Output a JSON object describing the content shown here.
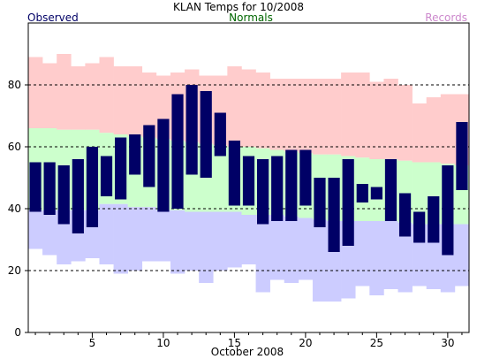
{
  "chart_data": {
    "type": "bar",
    "title": "KLAN Temps for 10/2008",
    "xlabel": "October 2008",
    "ylabel": "",
    "xlim": [
      0.5,
      31.5
    ],
    "ylim": [
      0,
      100
    ],
    "yticks": [
      0,
      20,
      40,
      60,
      80
    ],
    "xticks": [
      5,
      10,
      15,
      20,
      25,
      30
    ],
    "grid": "horizontal dashed at 20, 40, 60, 80",
    "legend": {
      "position": "top",
      "entries": [
        {
          "name": "Observed",
          "color": "#000066"
        },
        {
          "name": "Normals",
          "color": "#006600"
        },
        {
          "name": "Records",
          "color": "#cc88cc"
        }
      ]
    },
    "colors": {
      "observed": "#000066",
      "normals": "#ccffcc",
      "records_high": "#ffcccc",
      "records_low": "#ccccff"
    },
    "days": [
      1,
      2,
      3,
      4,
      5,
      6,
      7,
      8,
      9,
      10,
      11,
      12,
      13,
      14,
      15,
      16,
      17,
      18,
      19,
      20,
      21,
      22,
      23,
      24,
      25,
      26,
      27,
      28,
      29,
      30,
      31
    ],
    "series": [
      {
        "name": "Observed",
        "type": "floating-bar",
        "low": [
          39,
          38,
          35,
          32,
          34,
          44,
          43,
          51,
          47,
          39,
          40,
          51,
          50,
          57,
          41,
          41,
          35,
          36,
          36,
          41,
          34,
          26,
          28,
          42,
          43,
          36,
          31,
          29,
          29,
          25,
          46
        ],
        "high": [
          55,
          55,
          54,
          56,
          60,
          57,
          63,
          64,
          67,
          69,
          77,
          80,
          78,
          71,
          62,
          57,
          56,
          57,
          59,
          59,
          50,
          50,
          56,
          48,
          47,
          56,
          45,
          39,
          44,
          54,
          68
        ]
      },
      {
        "name": "Normals",
        "type": "band",
        "low": [
          39.5,
          39.5,
          39.5,
          39.5,
          39.5,
          41.5,
          41.5,
          40.5,
          40.5,
          39.5,
          39.5,
          39.0,
          39.0,
          39.0,
          39.0,
          38.0,
          38.0,
          38.0,
          37.5,
          37.0,
          36.5,
          36.0,
          36.0,
          36.0,
          36.0,
          36.0,
          35.5,
          35.0,
          35.0,
          35.0,
          35.0
        ],
        "high": [
          66,
          66,
          65.5,
          65.5,
          65.5,
          64.5,
          64,
          63.5,
          63,
          62.5,
          62,
          61.5,
          61,
          60.5,
          60,
          60,
          59.5,
          59,
          58.5,
          58,
          57.5,
          57.5,
          57,
          56.5,
          56,
          56,
          55.5,
          55,
          55,
          54.5,
          54
        ]
      },
      {
        "name": "Record High",
        "type": "band",
        "values": [
          89,
          87,
          90,
          86,
          87,
          89,
          86,
          86,
          84,
          83,
          84,
          85,
          83,
          83,
          86,
          85,
          84,
          82,
          82,
          82,
          82,
          82,
          84,
          84,
          81,
          82,
          80,
          74,
          76,
          77,
          77
        ]
      },
      {
        "name": "Record Low",
        "type": "band",
        "values": [
          27,
          25,
          22,
          23,
          24,
          22,
          19,
          20,
          23,
          23,
          19,
          20,
          16,
          20,
          21,
          22,
          13,
          17,
          16,
          17,
          10,
          10,
          11,
          15,
          12,
          14,
          13,
          15,
          14,
          13,
          15
        ]
      }
    ]
  }
}
